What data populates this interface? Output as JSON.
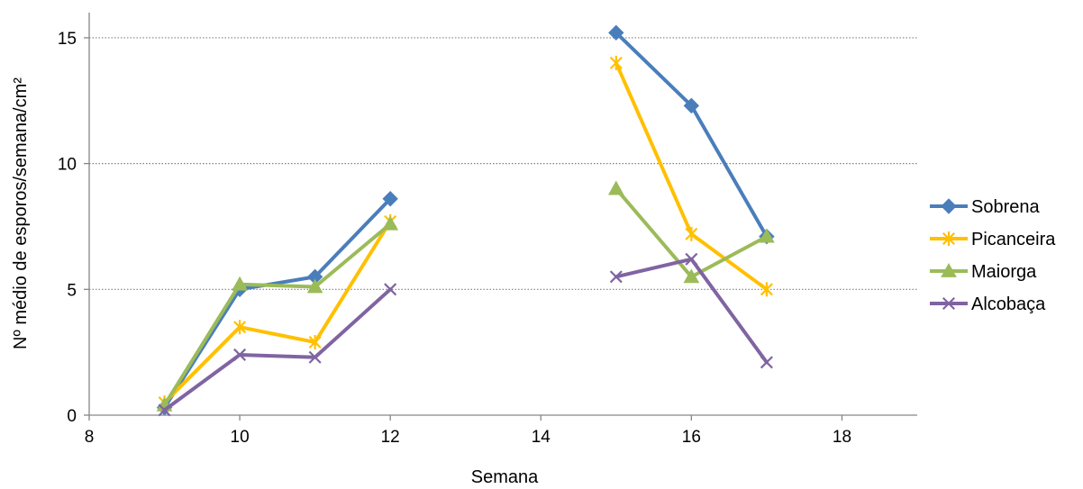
{
  "chart_data": {
    "type": "line",
    "title": "",
    "xlabel": "Semana",
    "ylabel": "Nº  médio de esporos/semana/cm²",
    "xlim": [
      8,
      19
    ],
    "ylim": [
      0,
      16
    ],
    "xticks": [
      8,
      10,
      12,
      14,
      16,
      18
    ],
    "yticks": [
      0,
      5,
      10,
      15
    ],
    "grid": "horizontal-dotted",
    "legend_position": "right",
    "series": [
      {
        "name": "Sobrena",
        "color": "#4a7ebb",
        "marker": "diamond",
        "segments": [
          [
            [
              9,
              0.3
            ],
            [
              10,
              5.0
            ],
            [
              11,
              5.5
            ],
            [
              12,
              8.6
            ]
          ],
          [
            [
              15,
              15.2
            ],
            [
              16,
              12.3
            ],
            [
              17,
              7.1
            ]
          ]
        ]
      },
      {
        "name": "Picanceira",
        "color": "#ffc000",
        "marker": "asterisk",
        "segments": [
          [
            [
              9,
              0.5
            ],
            [
              10,
              3.5
            ],
            [
              11,
              2.9
            ],
            [
              12,
              7.7
            ]
          ],
          [
            [
              15,
              14.0
            ],
            [
              16,
              7.2
            ],
            [
              17,
              5.0
            ]
          ]
        ]
      },
      {
        "name": "Maiorga",
        "color": "#9bbb59",
        "marker": "triangle",
        "segments": [
          [
            [
              9,
              0.4
            ],
            [
              10,
              5.2
            ],
            [
              11,
              5.1
            ],
            [
              12,
              7.6
            ]
          ],
          [
            [
              15,
              9.0
            ],
            [
              16,
              5.5
            ],
            [
              17,
              7.1
            ]
          ]
        ]
      },
      {
        "name": "Alcobaça",
        "color": "#8064a2",
        "marker": "x",
        "segments": [
          [
            [
              9,
              0.2
            ],
            [
              10,
              2.4
            ],
            [
              11,
              2.3
            ],
            [
              12,
              5.0
            ]
          ],
          [
            [
              15,
              5.5
            ],
            [
              16,
              6.2
            ],
            [
              17,
              2.1
            ]
          ]
        ]
      }
    ]
  }
}
